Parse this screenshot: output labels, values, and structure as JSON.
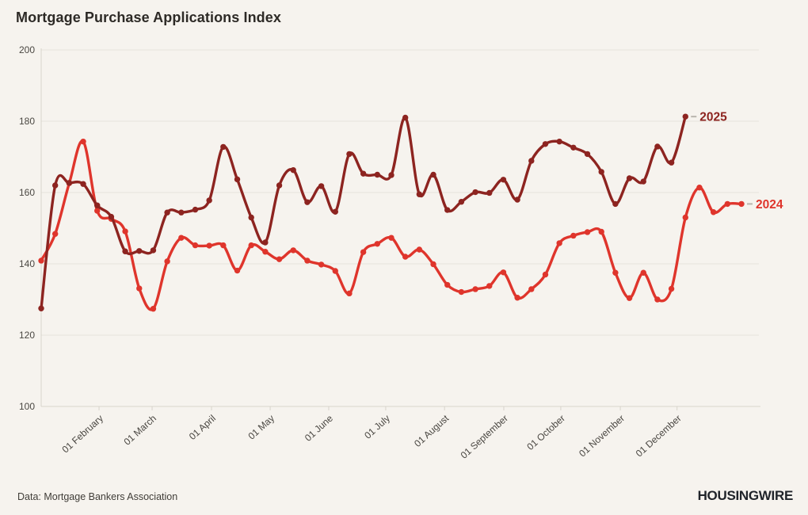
{
  "title": "Mortgage Purchase Applications Index",
  "source": "Data: Mortgage Bankers Association",
  "brand": "HOUSINGWIRE",
  "colors": {
    "background": "#f6f3ee",
    "grid": "#e7e3dc",
    "axis_line": "#d8d4cc",
    "tick_dash": "#b9b5ae",
    "axis_text": "#4a4742",
    "series_2025": "#8d2420",
    "series_2024": "#df352c"
  },
  "chart_data": {
    "type": "line",
    "title": "Mortgage Purchase Applications Index",
    "xlabel": "",
    "ylabel": "",
    "ylim": [
      100,
      200
    ],
    "y_ticks": [
      100,
      120,
      140,
      160,
      180,
      200
    ],
    "grid": "horizontal-only",
    "legend_position": "line-end-labels",
    "x_unit": "weekly observations, indexed from early January",
    "x_ticks": [
      {
        "label": "01 February",
        "week": 4.13
      },
      {
        "label": "01 March",
        "week": 7.92
      },
      {
        "label": "01 April",
        "week": 12.16
      },
      {
        "label": "01 May",
        "week": 16.35
      },
      {
        "label": "01 June",
        "week": 20.53
      },
      {
        "label": "01 July",
        "week": 24.6
      },
      {
        "label": "01 August",
        "week": 28.8
      },
      {
        "label": "01 September",
        "week": 33.03
      },
      {
        "label": "01 October",
        "week": 37.1
      },
      {
        "label": "01 November",
        "week": 41.35
      },
      {
        "label": "01 December",
        "week": 45.4
      }
    ],
    "series": [
      {
        "name": "2025",
        "color": "#8d2420",
        "values": [
          127.5,
          162,
          162.7,
          162.4,
          156.4,
          153.2,
          143.5,
          143.6,
          143.8,
          154.4,
          154.4,
          155.2,
          157.8,
          172.8,
          163.7,
          153,
          146,
          162,
          166.3,
          157.3,
          161.8,
          154.6,
          170.8,
          165.3,
          165,
          164.9,
          181,
          159.5,
          165,
          155.1,
          157.4,
          160.1,
          159.9,
          163.6,
          158,
          168.9,
          173.6,
          174.3,
          172.6,
          170.8,
          165.8,
          156.8,
          164,
          163.1,
          172.9,
          168.4,
          181.3
        ]
      },
      {
        "name": "2024",
        "color": "#df352c",
        "values": [
          140.9,
          148.4,
          162.6,
          174.3,
          154.9,
          152.6,
          149.1,
          133.1,
          127.4,
          140.7,
          147.3,
          145.2,
          145.1,
          145.2,
          138.1,
          145.2,
          143.4,
          141.3,
          143.8,
          140.9,
          139.8,
          138,
          131.7,
          143.3,
          145.6,
          147.3,
          142,
          144,
          139.9,
          134.1,
          132.1,
          132.9,
          133.8,
          137.6,
          130.5,
          132.9,
          137,
          145.8,
          147.9,
          148.9,
          149,
          137.5,
          130.4,
          137.5,
          130,
          133,
          153,
          161.4,
          154.5,
          156.8,
          156.8
        ]
      }
    ]
  }
}
